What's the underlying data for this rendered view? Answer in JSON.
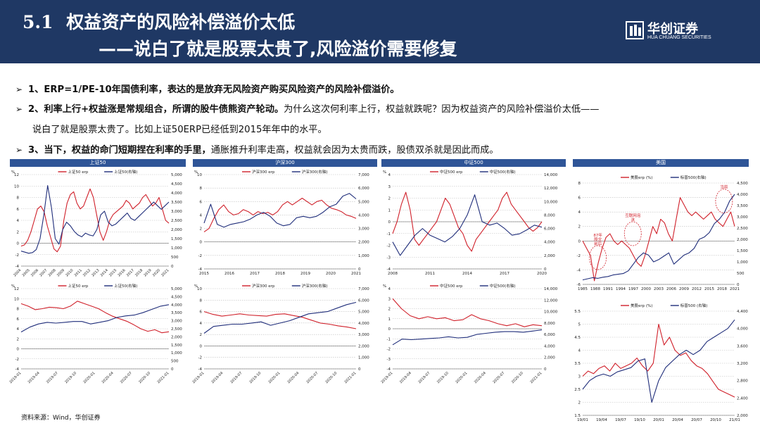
{
  "header": {
    "section_num": "5.1",
    "title_line1": "权益资产的风险补偿溢价太低",
    "title_line2": "——说白了就是股票太贵了,风险溢价需要修复",
    "logo_cn": "华创证券",
    "logo_en": "HUA CHUANG SECURITIES"
  },
  "bullets": [
    {
      "bold": "1、ERP=1/PE-10年国债利率，表达的是放弃无风险资产购买风险资产的风险补偿溢价。",
      "rest": ""
    },
    {
      "bold": "2、利率上行+权益涨是常规组合，所谓的股牛债熊资产轮动。",
      "rest": "为什么这次何利率上行，权益就跌呢？因为权益资产的风险补偿溢价太低——",
      "cont": "说白了就是股票太贵了。比如上证50ERP已经低到2015年年中的水平。"
    },
    {
      "bold": "3、当下，权益的命门短期捏在利率的手里，",
      "rest": "通胀推升利率走高，权益就会因为太贵而跌，股债双杀就是因此而成。"
    }
  ],
  "source": "资料来源：Wind，华创证券",
  "colors": {
    "header_bg": "#1f3864",
    "panel_head": "#2f5597",
    "erp_red": "#d0202a",
    "index_navy": "#1f2d7a"
  },
  "panel_heads": [
    "上证50",
    "沪深300",
    "中证500",
    "美国"
  ],
  "chart_data": [
    {
      "id": "sz50_long",
      "type": "line",
      "legend": [
        "上证50 erp",
        "上证50(右轴)"
      ],
      "left_unit": "%",
      "left_ticks": [
        -4,
        -2,
        0,
        2,
        4,
        6,
        8,
        10,
        12
      ],
      "ylim": [
        -4,
        12
      ],
      "right_ticks": [
        0,
        500,
        1000,
        1500,
        2000,
        2500,
        3000,
        3500,
        4000,
        4500,
        5000
      ],
      "y2lim": [
        0,
        5000
      ],
      "x_ticks": [
        "2004",
        "2005",
        "2006",
        "2007",
        "2008",
        "2009",
        "2010",
        "2011",
        "2012",
        "2013",
        "2014",
        "2015",
        "2016",
        "2017",
        "2018",
        "2019",
        "2020",
        "2021"
      ],
      "series": [
        {
          "name": "上证50 erp",
          "axis": "left",
          "values": [
            -0.5,
            -0.3,
            0.5,
            2,
            4,
            6,
            6.5,
            5.5,
            3,
            1,
            -1,
            -1.5,
            -0.5,
            4,
            7,
            8.5,
            9,
            7,
            6,
            6.5,
            8,
            9.5,
            8,
            5,
            2,
            0.5,
            2,
            4,
            5,
            5.5,
            6,
            6.5,
            7.5,
            7,
            6,
            6.5,
            7,
            8,
            8.5,
            7.5,
            6.5,
            7,
            8,
            6,
            4,
            3.5
          ]
        },
        {
          "name": "上证50(右轴)",
          "axis": "right",
          "values": [
            820,
            760,
            700,
            740,
            900,
            1500,
            2800,
            4400,
            3200,
            1500,
            1200,
            2000,
            2400,
            2200,
            1900,
            1700,
            1600,
            1800,
            1700,
            1650,
            2000,
            2800,
            3000,
            2400,
            2200,
            2300,
            2500,
            2700,
            2900,
            2600,
            2500,
            2700,
            2900,
            3100,
            3300,
            3500,
            3300,
            3100,
            3300,
            3500
          ]
        }
      ]
    },
    {
      "id": "hs300_long",
      "type": "line",
      "legend": [
        "沪深300 erp",
        "沪深300(右轴)"
      ],
      "left_unit": "%",
      "left_ticks": [
        -4,
        -2,
        0,
        2,
        4,
        6,
        8,
        10
      ],
      "ylim": [
        -4,
        10
      ],
      "right_ticks": [
        0,
        1000,
        2000,
        3000,
        4000,
        5000,
        6000,
        7000
      ],
      "y2lim": [
        0,
        7000
      ],
      "x_ticks": [
        "2015",
        "2016",
        "2017",
        "2018",
        "2019",
        "2020",
        "2021"
      ],
      "series": [
        {
          "name": "沪深300 erp",
          "axis": "left",
          "values": [
            1.5,
            2,
            3.5,
            4.8,
            5.5,
            4.5,
            4,
            4.2,
            4.8,
            4.5,
            4,
            4.5,
            4.2,
            4.4,
            4,
            4.5,
            5.5,
            6,
            5.5,
            6,
            6.5,
            6,
            5.5,
            6,
            6.2,
            5.5,
            5,
            4.8,
            4.5,
            4,
            3.8,
            3.5
          ]
        },
        {
          "name": "沪深300(右轴)",
          "axis": "right",
          "values": [
            3400,
            4800,
            3300,
            3100,
            3300,
            3400,
            3500,
            3700,
            4000,
            4200,
            3900,
            3400,
            3200,
            3300,
            3800,
            3900,
            3800,
            3900,
            4200,
            4600,
            4800,
            5400,
            5600,
            5200
          ]
        }
      ]
    },
    {
      "id": "zz500_long",
      "type": "line",
      "legend": [
        "中证500 erp",
        "中证500(右轴)"
      ],
      "left_unit": "%",
      "left_ticks": [
        -4,
        -3,
        -2,
        -1,
        0,
        1,
        2,
        3,
        4
      ],
      "ylim": [
        -4,
        4
      ],
      "right_ticks": [
        0,
        2000,
        4000,
        6000,
        8000,
        10000,
        12000,
        14000
      ],
      "y2lim": [
        0,
        14000
      ],
      "x_ticks": [
        "2008",
        "2011",
        "2014",
        "2017",
        "2020"
      ],
      "series": [
        {
          "name": "中证500 erp",
          "axis": "left",
          "values": [
            -1,
            0,
            1.5,
            2.5,
            1,
            -1.5,
            -2,
            -1.5,
            -1,
            -0.5,
            0,
            1,
            2,
            1.5,
            0.5,
            -0.5,
            -1,
            -2,
            -2.5,
            -1.5,
            -1,
            -0.5,
            0,
            0.5,
            1,
            2,
            2.5,
            1.5,
            1,
            0.5,
            0,
            -0.5,
            -0.8,
            -0.5,
            0
          ]
        },
        {
          "name": "中证500(右轴)",
          "axis": "right",
          "values": [
            4000,
            2000,
            3500,
            5000,
            6000,
            5000,
            4500,
            4000,
            4800,
            6000,
            8000,
            11000,
            7000,
            6500,
            6800,
            6000,
            5000,
            5200,
            5800,
            6500,
            6200
          ]
        }
      ]
    },
    {
      "id": "sz50_recent",
      "type": "line",
      "legend": [
        "上证50 erp",
        "上证50(右轴)"
      ],
      "left_unit": "%",
      "left_ticks": [
        -4,
        -2,
        0,
        2,
        4,
        6,
        8,
        10,
        12
      ],
      "ylim": [
        -4,
        12
      ],
      "right_ticks": [
        0,
        500,
        1000,
        1500,
        2000,
        2500,
        3000,
        3500,
        4000,
        4500,
        5000
      ],
      "y2lim": [
        0,
        5000
      ],
      "x_ticks": [
        "2019-01",
        "2019-04",
        "2019-07",
        "2019-10",
        "2020-01",
        "2020-04",
        "2020-07",
        "2020-10",
        "2021-01"
      ],
      "series": [
        {
          "name": "上证50 erp",
          "axis": "left",
          "values": [
            9,
            8.5,
            7.8,
            8,
            8.3,
            8.2,
            8,
            8.5,
            9.5,
            9,
            8.5,
            8,
            7.2,
            6.5,
            6,
            5.5,
            4.8,
            4,
            3.5,
            3.8,
            3.2,
            3.4
          ]
        },
        {
          "name": "上证50(右轴)",
          "axis": "right",
          "values": [
            2300,
            2600,
            2800,
            2900,
            2850,
            2900,
            2950,
            2950,
            2800,
            2900,
            3000,
            3200,
            3300,
            3350,
            3500,
            3700,
            3900,
            4000
          ]
        }
      ]
    },
    {
      "id": "hs300_recent",
      "type": "line",
      "legend": [
        "沪深300 erp",
        "沪深300(右轴)"
      ],
      "left_unit": "%",
      "left_ticks": [
        -4,
        -2,
        0,
        2,
        4,
        6,
        8,
        10
      ],
      "ylim": [
        -4,
        10
      ],
      "right_ticks": [
        0,
        1000,
        2000,
        3000,
        4000,
        5000,
        6000,
        7000
      ],
      "y2lim": [
        0,
        7000
      ],
      "x_ticks": [
        "2019-01",
        "2019-04",
        "2019-07",
        "2019-10",
        "2020-01",
        "2020-04",
        "2020-07",
        "2020-10",
        "2021-01"
      ],
      "series": [
        {
          "name": "沪深300 erp",
          "axis": "left",
          "values": [
            6,
            5.5,
            5.2,
            5.4,
            5.6,
            5.4,
            5.3,
            5.2,
            5.5,
            5.6,
            5.3,
            5,
            4.5,
            4,
            3.8,
            3.5,
            3.3,
            3
          ]
        },
        {
          "name": "沪深300(右轴)",
          "axis": "right",
          "values": [
            3100,
            3700,
            3800,
            3900,
            3900,
            4000,
            4100,
            3800,
            4000,
            4200,
            4500,
            4800,
            4900,
            5000,
            5300,
            5600,
            5800
          ]
        }
      ]
    },
    {
      "id": "zz500_recent",
      "type": "line",
      "legend": [
        "中证500 erp",
        "中证500(右轴)"
      ],
      "left_unit": "%",
      "left_ticks": [
        -4,
        -3,
        -2,
        -1,
        0,
        1,
        2,
        3,
        4
      ],
      "ylim": [
        -4,
        4
      ],
      "right_ticks": [
        0,
        2000,
        4000,
        6000,
        8000,
        10000,
        12000,
        14000
      ],
      "y2lim": [
        0,
        14000
      ],
      "x_ticks": [
        "2019-01",
        "2019-04",
        "2019-07",
        "2019-10",
        "2020-01",
        "2020-04",
        "2020-07",
        "2020-10",
        "2021-01"
      ],
      "series": [
        {
          "name": "中证500 erp",
          "axis": "left",
          "values": [
            3,
            2,
            1.3,
            1,
            1.2,
            1,
            1.1,
            0.8,
            0.9,
            1.4,
            1,
            0.8,
            0.5,
            0.3,
            0.5,
            0.2,
            0.4,
            0.3
          ]
        },
        {
          "name": "中证500(右轴)",
          "axis": "right",
          "values": [
            4200,
            5200,
            5100,
            5200,
            5300,
            5400,
            5600,
            5400,
            5500,
            6000,
            6200,
            6400,
            6500,
            6500,
            6400,
            6600,
            6800
          ]
        }
      ]
    },
    {
      "id": "us_long",
      "type": "line",
      "legend": [
        "美股erp (%)",
        "标普500(右轴)"
      ],
      "left_ticks": [
        -6,
        -4,
        -2,
        0,
        2,
        4,
        6,
        8
      ],
      "ylim": [
        -6,
        8
      ],
      "right_ticks": [
        0,
        500,
        1000,
        1500,
        2000,
        2500,
        3000,
        3500,
        4000,
        4500
      ],
      "y2lim": [
        0,
        4500
      ],
      "x_ticks": [
        "1985",
        "1988",
        "1991",
        "1994",
        "1997",
        "2000",
        "2003",
        "2006",
        "2009",
        "2012",
        "2015",
        "2018",
        "2021"
      ],
      "annotations": [
        "87年\n股灾\n前后",
        "互联网泡\n沫",
        "当前"
      ],
      "series": [
        {
          "name": "美股erp (%)",
          "axis": "left",
          "values": [
            0,
            -1,
            -2,
            -5.5,
            -3,
            -1,
            0.5,
            1,
            0,
            -0.5,
            0,
            -0.5,
            -1,
            -2,
            -3,
            -3.5,
            -2,
            0,
            2,
            1,
            3,
            2.5,
            1,
            0,
            3,
            6,
            5,
            4,
            3.5,
            4,
            3.5,
            3,
            3.5,
            4,
            3,
            2.5,
            2,
            3,
            4,
            2
          ]
        },
        {
          "name": "标普500(右轴)",
          "axis": "right",
          "values": [
            200,
            250,
            300,
            270,
            320,
            350,
            420,
            450,
            480,
            600,
            900,
            1200,
            1400,
            1300,
            1000,
            1100,
            1250,
            1400,
            900,
            1100,
            1300,
            1400,
            1600,
            2000,
            2100,
            2300,
            2700,
            2900,
            3200,
            3700,
            4000
          ]
        }
      ]
    },
    {
      "id": "us_recent",
      "type": "line",
      "legend": [
        "美股erp (%)",
        "标普500 (右轴)"
      ],
      "left_ticks": [
        1.5,
        2.0,
        2.5,
        3.0,
        3.5,
        4.0,
        4.5,
        5.0,
        5.5
      ],
      "ylim": [
        1.5,
        5.5
      ],
      "right_ticks": [
        2000,
        2400,
        2800,
        3200,
        3600,
        4000,
        4400
      ],
      "y2lim": [
        2000,
        4400
      ],
      "x_ticks": [
        "19/01",
        "19/04",
        "19/07",
        "19/10",
        "20/01",
        "20/04",
        "20/07",
        "20/10",
        "21/01"
      ],
      "series": [
        {
          "name": "美股erp (%)",
          "axis": "left",
          "values": [
            3,
            3.2,
            3.1,
            3.3,
            3.4,
            3.2,
            3.5,
            3.3,
            3.4,
            3.5,
            3.7,
            3.4,
            3.2,
            3.5,
            5,
            4.2,
            4.5,
            4,
            3.8,
            3.9,
            3.6,
            3.4,
            3.3,
            3.1,
            2.8,
            2.5,
            2.4,
            2.3,
            2.2
          ]
        },
        {
          "name": "标普500 (右轴)",
          "axis": "right",
          "values": [
            2600,
            2800,
            2900,
            2950,
            2900,
            3000,
            3050,
            3100,
            3250,
            3300,
            2300,
            2800,
            3100,
            3250,
            3400,
            3500,
            3400,
            3500,
            3700,
            3800,
            3900,
            4000,
            4200
          ]
        }
      ]
    }
  ]
}
